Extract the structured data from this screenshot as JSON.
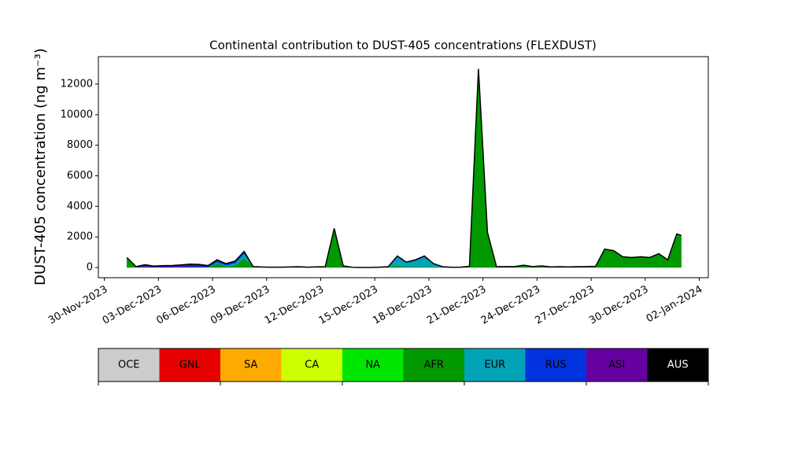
{
  "chart_data": {
    "type": "stacked_area",
    "title": "Continental contribution to DUST-405 concentrations (FLEXDUST)",
    "y_label": "DUST-405 concentration (ng m⁻³)",
    "x": [
      "2023-12-01 06:00",
      "2023-12-01 18:00",
      "2023-12-02 06:00",
      "2023-12-02 18:00",
      "2023-12-03 06:00",
      "2023-12-03 18:00",
      "2023-12-04 06:00",
      "2023-12-04 18:00",
      "2023-12-05 06:00",
      "2023-12-05 18:00",
      "2023-12-06 06:00",
      "2023-12-06 18:00",
      "2023-12-07 06:00",
      "2023-12-07 18:00",
      "2023-12-08 06:00",
      "2023-12-08 18:00",
      "2023-12-09 06:00",
      "2023-12-09 18:00",
      "2023-12-10 06:00",
      "2023-12-10 18:00",
      "2023-12-11 06:00",
      "2023-12-11 18:00",
      "2023-12-12 06:00",
      "2023-12-12 18:00",
      "2023-12-13 06:00",
      "2023-12-13 18:00",
      "2023-12-14 06:00",
      "2023-12-14 18:00",
      "2023-12-15 06:00",
      "2023-12-15 18:00",
      "2023-12-16 06:00",
      "2023-12-16 18:00",
      "2023-12-17 06:00",
      "2023-12-17 18:00",
      "2023-12-18 06:00",
      "2023-12-18 18:00",
      "2023-12-19 06:00",
      "2023-12-19 18:00",
      "2023-12-20 06:00",
      "2023-12-20 18:00",
      "2023-12-21 06:00",
      "2023-12-21 18:00",
      "2023-12-22 06:00",
      "2023-12-22 18:00",
      "2023-12-23 06:00",
      "2023-12-23 18:00",
      "2023-12-24 06:00",
      "2023-12-24 18:00",
      "2023-12-25 06:00",
      "2023-12-25 18:00",
      "2023-12-26 06:00",
      "2023-12-26 18:00",
      "2023-12-27 06:00",
      "2023-12-27 18:00",
      "2023-12-28 06:00",
      "2023-12-28 18:00",
      "2023-12-29 06:00",
      "2023-12-29 18:00",
      "2023-12-30 06:00",
      "2023-12-30 18:00",
      "2023-12-31 06:00",
      "2023-12-31 18:00",
      "2024-01-01 00:00"
    ],
    "series": [
      {
        "name": "AFR",
        "color": "#009900",
        "values": [
          610,
          30,
          40,
          20,
          20,
          20,
          30,
          40,
          40,
          30,
          250,
          80,
          130,
          600,
          60,
          30,
          20,
          20,
          30,
          50,
          20,
          40,
          50,
          2550,
          100,
          10,
          0,
          0,
          20,
          50,
          100,
          40,
          50,
          50,
          30,
          20,
          10,
          20,
          80,
          13000,
          2300,
          50,
          60,
          60,
          150,
          60,
          100,
          40,
          50,
          40,
          50,
          60,
          80,
          1200,
          1100,
          700,
          650,
          700,
          650,
          900,
          500,
          2200,
          2100
        ]
      },
      {
        "name": "EUR",
        "color": "#00a3b8",
        "values": [
          0,
          0,
          0,
          0,
          0,
          0,
          0,
          0,
          0,
          0,
          100,
          60,
          150,
          300,
          0,
          0,
          0,
          0,
          0,
          0,
          0,
          0,
          0,
          0,
          0,
          0,
          0,
          0,
          0,
          0,
          600,
          280,
          400,
          650,
          200,
          30,
          0,
          0,
          0,
          0,
          0,
          0,
          0,
          0,
          0,
          0,
          0,
          0,
          0,
          0,
          0,
          0,
          0,
          0,
          0,
          0,
          0,
          0,
          0,
          0,
          0,
          0,
          0
        ]
      },
      {
        "name": "RUS",
        "color": "#0033dd",
        "values": [
          10,
          10,
          40,
          20,
          30,
          30,
          40,
          60,
          60,
          40,
          100,
          80,
          100,
          100,
          0,
          0,
          0,
          0,
          0,
          0,
          0,
          0,
          0,
          0,
          0,
          0,
          0,
          0,
          0,
          0,
          50,
          30,
          50,
          50,
          20,
          0,
          0,
          0,
          0,
          0,
          0,
          0,
          0,
          0,
          0,
          0,
          0,
          0,
          0,
          0,
          0,
          0,
          0,
          0,
          0,
          0,
          0,
          0,
          0,
          0,
          0,
          0,
          0
        ]
      },
      {
        "name": "ASI",
        "color": "#6600a0",
        "values": [
          30,
          20,
          100,
          50,
          70,
          80,
          100,
          120,
          100,
          50,
          50,
          30,
          40,
          50,
          0,
          0,
          0,
          0,
          0,
          0,
          0,
          0,
          0,
          0,
          0,
          0,
          0,
          0,
          0,
          0,
          0,
          0,
          0,
          0,
          0,
          0,
          0,
          0,
          0,
          0,
          0,
          0,
          0,
          0,
          0,
          0,
          0,
          0,
          0,
          0,
          0,
          0,
          0,
          0,
          0,
          0,
          0,
          0,
          0,
          0,
          0,
          0,
          0
        ]
      }
    ],
    "xlim": [
      "2023-11-29 16:00",
      "2024-01-02 12:00"
    ],
    "xticks": [
      {
        "value": "2023-11-30",
        "label": "30-Nov-2023"
      },
      {
        "value": "2023-12-03",
        "label": "03-Dec-2023"
      },
      {
        "value": "2023-12-06",
        "label": "06-Dec-2023"
      },
      {
        "value": "2023-12-09",
        "label": "09-Dec-2023"
      },
      {
        "value": "2023-12-12",
        "label": "12-Dec-2023"
      },
      {
        "value": "2023-12-15",
        "label": "15-Dec-2023"
      },
      {
        "value": "2023-12-18",
        "label": "18-Dec-2023"
      },
      {
        "value": "2023-12-21",
        "label": "21-Dec-2023"
      },
      {
        "value": "2023-12-24",
        "label": "24-Dec-2023"
      },
      {
        "value": "2023-12-27",
        "label": "27-Dec-2023"
      },
      {
        "value": "2023-12-30",
        "label": "30-Dec-2023"
      },
      {
        "value": "2024-01-02",
        "label": "02-Jan-2024"
      }
    ],
    "ylim": [
      -670,
      13800
    ],
    "yticks": [
      0,
      2000,
      4000,
      6000,
      8000,
      10000,
      12000
    ],
    "grid": false,
    "colorbar": {
      "labels": [
        "OCE",
        "GNL",
        "SA",
        "CA",
        "NA",
        "AFR",
        "EUR",
        "RUS",
        "ASI",
        "AUS"
      ],
      "colors": [
        "#cccccc",
        "#e60000",
        "#ffaa00",
        "#ccff00",
        "#00e600",
        "#009900",
        "#00a3b8",
        "#0033dd",
        "#6600a0",
        "#000000"
      ]
    }
  }
}
